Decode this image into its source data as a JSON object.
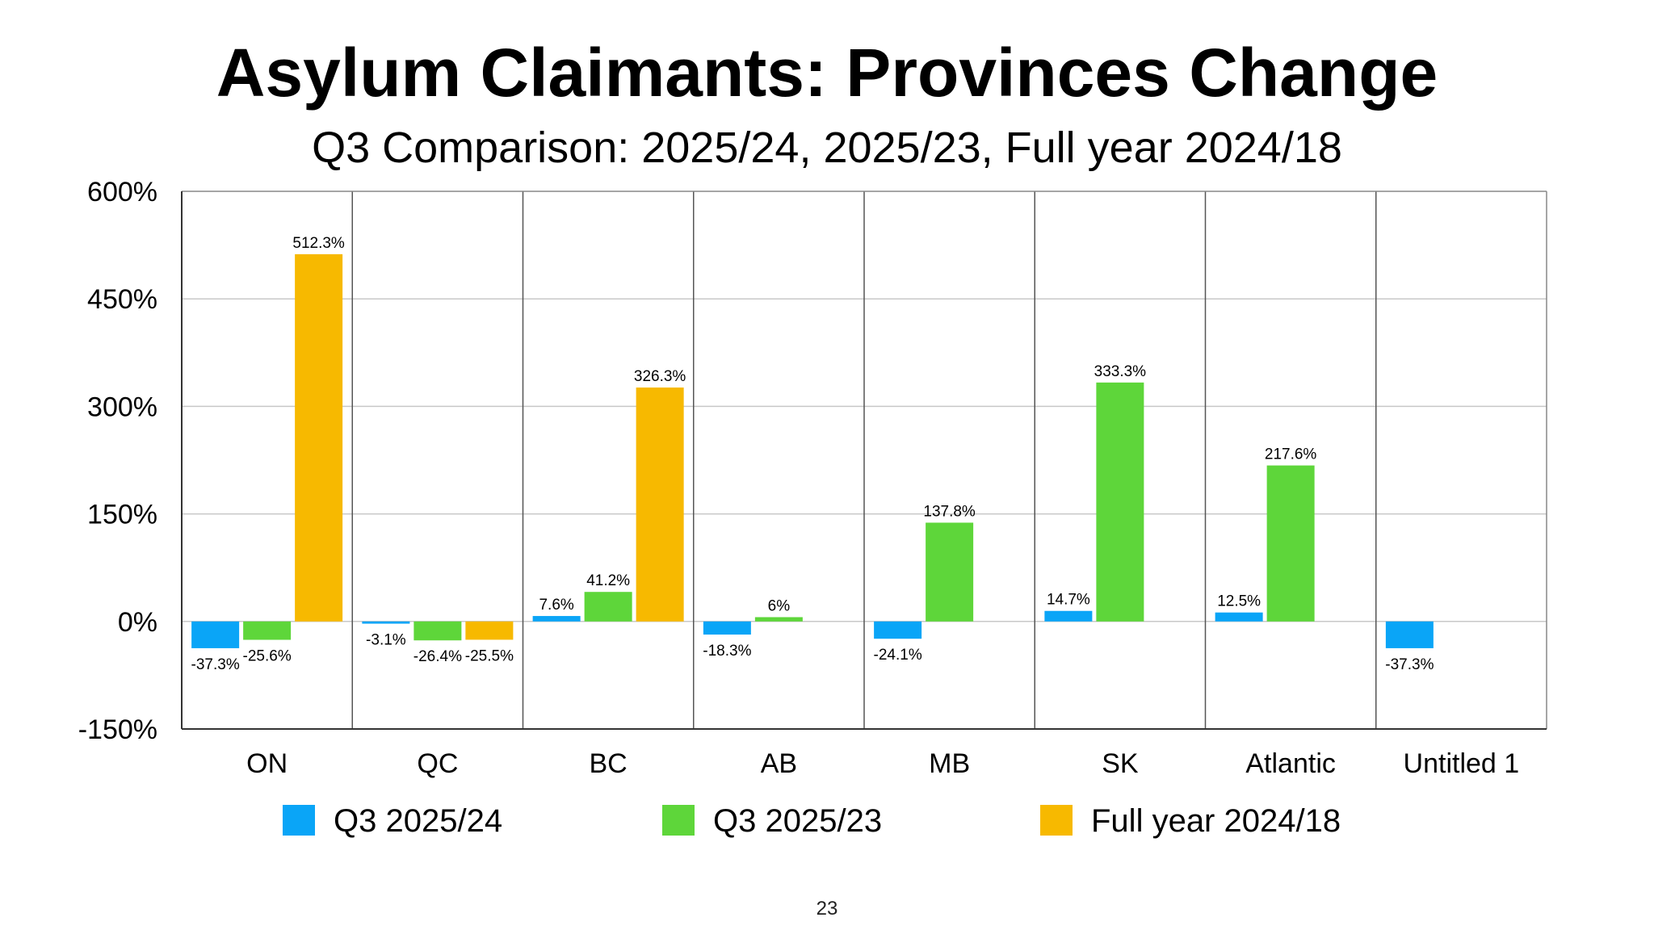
{
  "slide": {
    "title": "Asylum Claimants: Provinces Change",
    "subtitle": "Q3 Comparison: 2025/24, 2025/23, Full year 2024/18",
    "page_number": "23"
  },
  "chart_data": {
    "type": "bar",
    "categories": [
      "ON",
      "QC",
      "BC",
      "AB",
      "MB",
      "SK",
      "Atlantic",
      "Untitled 1"
    ],
    "series": [
      {
        "name": "Q3 2025/24",
        "color": "#0aa5f7",
        "values": [
          -37.3,
          -3.1,
          7.6,
          -18.3,
          -24.1,
          14.7,
          12.5,
          -37.3
        ],
        "labels": [
          "-37.3%",
          "-3.1%",
          "7.6%",
          "-18.3%",
          "-24.1%",
          "14.7%",
          "12.5%",
          "-37.3%"
        ]
      },
      {
        "name": "Q3 2025/23",
        "color": "#5ed63a",
        "values": [
          -25.6,
          -26.4,
          41.2,
          6,
          137.8,
          333.3,
          217.6,
          null
        ],
        "labels": [
          "-25.6%",
          "-26.4%",
          "41.2%",
          "6%",
          "137.8%",
          "333.3%",
          "217.6%",
          ""
        ]
      },
      {
        "name": "Full year 2024/18",
        "color": "#f7b900",
        "values": [
          512.3,
          -25.5,
          326.3,
          null,
          null,
          null,
          null,
          null
        ],
        "labels": [
          "512.3%",
          "-25.5%",
          "326.3%",
          "",
          "",
          "",
          "",
          ""
        ]
      }
    ],
    "ylim": [
      -150,
      600
    ],
    "yticks": [
      -150,
      0,
      150,
      300,
      450,
      600
    ],
    "ytick_labels": [
      "-150%",
      "0%",
      "150%",
      "300%",
      "450%",
      "600%"
    ],
    "grid": true,
    "legend_position": "bottom"
  }
}
